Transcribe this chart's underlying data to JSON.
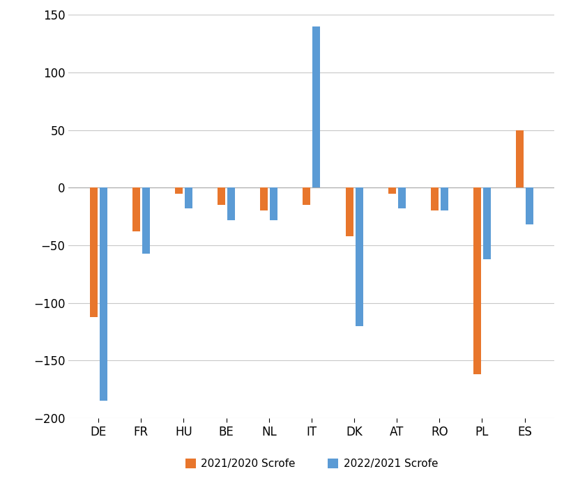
{
  "categories": [
    "DE",
    "FR",
    "HU",
    "BE",
    "NL",
    "IT",
    "DK",
    "AT",
    "RO",
    "PL",
    "ES"
  ],
  "series": {
    "2021/2020 Scrofe": [
      -112,
      -38,
      -5,
      -15,
      -20,
      -15,
      -42,
      -5,
      -20,
      -162,
      50
    ],
    "2022/2021 Scrofe": [
      -185,
      -57,
      -18,
      -28,
      -28,
      140,
      -120,
      -18,
      -20,
      -62,
      -32
    ]
  },
  "colors": {
    "2021/2020 Scrofe": "#E8762C",
    "2022/2021 Scrofe": "#5B9BD5"
  },
  "ylim": [
    -200,
    150
  ],
  "yticks": [
    -200,
    -150,
    -100,
    -50,
    0,
    50,
    100,
    150
  ],
  "ylabel": "",
  "xlabel": "",
  "background_color": "#FFFFFF",
  "grid_color": "#C8C8C8",
  "bar_width": 0.18,
  "bar_gap": 0.05,
  "legend_loc": "lower center",
  "legend_ncol": 2,
  "tick_fontsize": 12,
  "legend_fontsize": 11
}
